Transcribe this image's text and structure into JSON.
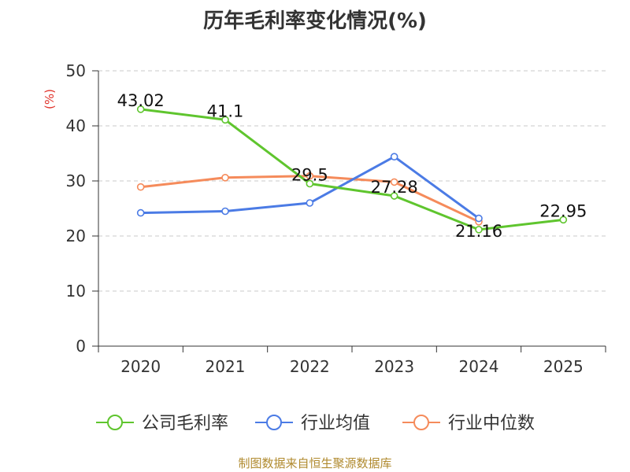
{
  "chart_data": {
    "type": "line",
    "title": "历年毛利率变化情况(%)",
    "ylabel": "(%)",
    "xlabel": "",
    "categories": [
      "2020",
      "2021",
      "2022",
      "2023",
      "2024",
      "2025"
    ],
    "ylim": [
      0,
      50
    ],
    "yticks": [
      0,
      10,
      20,
      30,
      40,
      50
    ],
    "grid": true,
    "legend_position": "bottom",
    "series": [
      {
        "name": "公司毛利率",
        "color": "#5fc52e",
        "values": [
          43.02,
          41.1,
          29.5,
          27.28,
          21.16,
          22.95
        ],
        "labels": [
          "43.02",
          "41.1",
          "29.5",
          "27.28",
          "21.16",
          "22.95"
        ]
      },
      {
        "name": "行业均值",
        "color": "#4b7be5",
        "values": [
          24.2,
          24.5,
          26.0,
          34.4,
          23.2,
          null
        ],
        "labels": []
      },
      {
        "name": "行业中位数",
        "color": "#f58b5b",
        "values": [
          28.9,
          30.6,
          30.9,
          29.8,
          22.6,
          null
        ],
        "labels": []
      }
    ]
  },
  "ylabel_color": "#e0332b",
  "source_text": "制图数据来自恒生聚源数据库"
}
